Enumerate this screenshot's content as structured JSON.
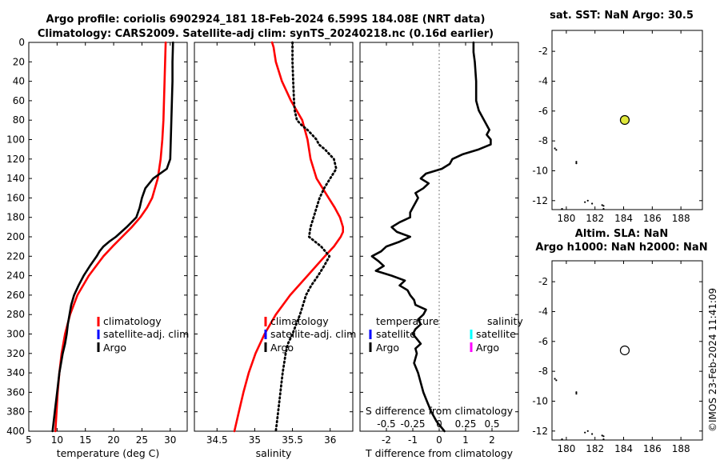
{
  "title": {
    "line1": "Argo profile: coriolis 6902924_181 18-Feb-2024 6.599S 184.08E (NRT data)",
    "line2": "Climatology: CARS2009. Satellite-adj clim: synTS_20240218.nc (0.16d earlier)"
  },
  "colors": {
    "climatology": "#ff0000",
    "satellite_adj_clim": "#0000ff",
    "argo": "#000000",
    "sal_satellite": "#00ffff",
    "sal_argo": "#ff00ff",
    "map_marker": "#dfe73a",
    "axis": "#000000"
  },
  "depth_ticks": [
    "0",
    "20",
    "40",
    "60",
    "80",
    "100",
    "120",
    "140",
    "160",
    "180",
    "200",
    "220",
    "240",
    "260",
    "280",
    "300",
    "320",
    "340",
    "360",
    "380",
    "400"
  ],
  "chart_data": [
    {
      "type": "line",
      "name": "temperature",
      "xlabel": "temperature (deg C)",
      "xlim": [
        5,
        33
      ],
      "ylim": [
        400,
        0
      ],
      "x_ticks": [
        "5",
        "10",
        "15",
        "20",
        "25",
        "30"
      ],
      "series": [
        {
          "name": "climatology",
          "color": "#ff0000",
          "style": "solid",
          "depth": [
            0,
            20,
            40,
            60,
            80,
            100,
            120,
            140,
            160,
            170,
            180,
            190,
            200,
            210,
            220,
            240,
            260,
            280,
            300,
            320,
            340,
            360,
            380,
            400
          ],
          "values": [
            29.2,
            29.1,
            29.0,
            28.9,
            28.8,
            28.6,
            28.3,
            27.8,
            26.8,
            25.9,
            24.7,
            23.2,
            21.5,
            19.8,
            18.2,
            15.6,
            13.6,
            12.3,
            11.4,
            10.8,
            10.4,
            10.1,
            9.9,
            9.7
          ]
        },
        {
          "name": "Argo",
          "color": "#000000",
          "style": "solid",
          "depth": [
            0,
            20,
            40,
            60,
            80,
            100,
            120,
            130,
            140,
            150,
            160,
            170,
            180,
            190,
            200,
            205,
            210,
            215,
            220,
            230,
            240,
            250,
            260,
            270,
            280,
            290,
            300,
            310,
            320,
            340,
            360,
            380,
            400
          ],
          "values": [
            30.5,
            30.4,
            30.4,
            30.3,
            30.2,
            30.1,
            30.0,
            29.4,
            27.0,
            25.6,
            25.0,
            24.6,
            24.0,
            22.3,
            20.4,
            19.2,
            18.2,
            17.5,
            17.0,
            15.8,
            14.7,
            13.8,
            13.0,
            12.5,
            12.2,
            11.9,
            11.7,
            11.4,
            11.0,
            10.4,
            10.0,
            9.6,
            9.2
          ]
        }
      ],
      "legend": [
        {
          "label": "climatology",
          "color": "#ff0000"
        },
        {
          "label": "satellite-adj. clim",
          "color": "#0000ff"
        },
        {
          "label": "Argo",
          "color": "#000000"
        }
      ]
    },
    {
      "type": "line",
      "name": "salinity",
      "xlabel": "salinity",
      "xlim": [
        34.2,
        36.3
      ],
      "ylim": [
        400,
        0
      ],
      "x_ticks": [
        "34.5",
        "35",
        "35.5",
        "36"
      ],
      "series": [
        {
          "name": "climatology",
          "color": "#ff0000",
          "style": "solid",
          "depth": [
            0,
            5,
            10,
            20,
            40,
            60,
            80,
            100,
            120,
            140,
            160,
            170,
            180,
            190,
            195,
            200,
            210,
            220,
            240,
            260,
            280,
            300,
            320,
            340,
            360,
            380,
            400
          ],
          "values": [
            35.23,
            35.25,
            35.26,
            35.28,
            35.36,
            35.48,
            35.63,
            35.7,
            35.74,
            35.82,
            35.98,
            36.06,
            36.13,
            36.17,
            36.17,
            36.14,
            36.05,
            35.93,
            35.7,
            35.47,
            35.28,
            35.13,
            35.01,
            34.92,
            34.85,
            34.79,
            34.73
          ]
        },
        {
          "name": "Argo",
          "color": "#000000",
          "style": "dotted",
          "depth": [
            0,
            20,
            40,
            60,
            70,
            80,
            85,
            90,
            95,
            100,
            105,
            110,
            120,
            130,
            140,
            150,
            160,
            170,
            180,
            190,
            200,
            210,
            220,
            230,
            240,
            250,
            260,
            270,
            280,
            290,
            300,
            310,
            320,
            340,
            360,
            380,
            400
          ],
          "values": [
            35.5,
            35.5,
            35.51,
            35.52,
            35.53,
            35.56,
            35.62,
            35.7,
            35.76,
            35.82,
            35.85,
            35.93,
            36.05,
            36.08,
            36.0,
            35.92,
            35.86,
            35.82,
            35.78,
            35.74,
            35.72,
            35.88,
            35.99,
            35.92,
            35.84,
            35.75,
            35.68,
            35.64,
            35.6,
            35.55,
            35.5,
            35.44,
            35.41,
            35.37,
            35.34,
            35.31,
            35.28
          ]
        }
      ],
      "legend": [
        {
          "label": "climatology",
          "color": "#ff0000"
        },
        {
          "label": "satellite-adj. clim",
          "color": "#0000ff"
        },
        {
          "label": "Argo",
          "color": "#000000"
        }
      ]
    },
    {
      "type": "line",
      "name": "difference_from_climatology",
      "xlabel": "T difference from climatology",
      "top_xlabel": "S difference from climatology",
      "xlim": [
        -3,
        3
      ],
      "ylim": [
        400,
        0
      ],
      "x_ticks": [
        "-2",
        "-1",
        "0",
        "1",
        "2"
      ],
      "top_ticks": [
        "-0.5",
        "-0.25",
        "0",
        "0.25",
        "0.5"
      ],
      "series": [
        {
          "name": "T difference (Argo - climatology)",
          "color": "#000000",
          "style": "solid",
          "depth": [
            0,
            10,
            20,
            40,
            60,
            70,
            80,
            90,
            95,
            100,
            105,
            110,
            115,
            120,
            125,
            130,
            135,
            140,
            145,
            150,
            155,
            160,
            165,
            170,
            175,
            180,
            185,
            190,
            195,
            200,
            205,
            210,
            215,
            220,
            225,
            230,
            235,
            240,
            245,
            250,
            255,
            260,
            265,
            270,
            275,
            280,
            285,
            290,
            295,
            300,
            305,
            310,
            315,
            320,
            330,
            340,
            350,
            360,
            370,
            380,
            390,
            400
          ],
          "values": [
            1.3,
            1.3,
            1.35,
            1.4,
            1.4,
            1.5,
            1.7,
            1.9,
            1.8,
            1.95,
            1.95,
            1.5,
            0.9,
            0.5,
            0.4,
            0.1,
            -0.5,
            -0.7,
            -0.4,
            -0.6,
            -0.9,
            -0.8,
            -0.9,
            -1.0,
            -1.1,
            -1.1,
            -1.5,
            -1.8,
            -1.6,
            -1.1,
            -1.5,
            -2.0,
            -2.2,
            -2.55,
            -2.3,
            -2.1,
            -2.4,
            -1.8,
            -1.3,
            -1.5,
            -1.2,
            -1.1,
            -0.95,
            -0.9,
            -0.5,
            -0.6,
            -0.8,
            -0.7,
            -0.9,
            -1.0,
            -0.85,
            -0.7,
            -0.9,
            -0.85,
            -0.95,
            -0.8,
            -0.7,
            -0.6,
            -0.45,
            -0.3,
            -0.1,
            0.2
          ]
        }
      ],
      "legend": [
        {
          "label": "temperature",
          "color": null
        },
        {
          "label": "satellite",
          "color": "#0000ff"
        },
        {
          "label": "Argo",
          "color": "#000000"
        },
        {
          "label": "salinity",
          "color": null
        },
        {
          "label": "satellite",
          "color": "#00ffff"
        },
        {
          "label": "Argo",
          "color": "#ff00ff"
        }
      ]
    },
    {
      "type": "scatter",
      "name": "sst_map",
      "title": "sat. SST: NaN Argo: 30.5",
      "xlim": [
        179,
        189.5
      ],
      "ylim": [
        -12.6,
        -0.6
      ],
      "x_ticks": [
        "180",
        "182",
        "184",
        "186",
        "188"
      ],
      "y_ticks": [
        "-2",
        "-4",
        "-6",
        "-8",
        "-10",
        "-12"
      ],
      "marker": {
        "lon": 184.08,
        "lat": -6.599,
        "fill": "#dfe73a"
      },
      "coast_points": [
        [
          179.2,
          -8.5
        ],
        [
          179.3,
          -8.6
        ],
        [
          180.7,
          -9.4
        ],
        [
          180.7,
          -9.5
        ],
        [
          181.3,
          -12.1
        ],
        [
          181.5,
          -12.0
        ],
        [
          181.8,
          -12.2
        ],
        [
          182.5,
          -12.3
        ],
        [
          182.6,
          -12.35
        ],
        [
          182.6,
          -12.55
        ],
        [
          179.7,
          -12.55
        ]
      ]
    },
    {
      "type": "scatter",
      "name": "sla_map",
      "title_line1": "Altim. SLA: NaN",
      "title_line2": "Argo h1000: NaN h2000: NaN",
      "xlim": [
        179,
        189.5
      ],
      "ylim": [
        -12.6,
        -0.6
      ],
      "x_ticks": [
        "180",
        "182",
        "184",
        "186",
        "188"
      ],
      "y_ticks": [
        "-2",
        "-4",
        "-6",
        "-8",
        "-10",
        "-12"
      ],
      "marker": {
        "lon": 184.08,
        "lat": -6.599,
        "fill": "#ffffff"
      },
      "coast_points": [
        [
          179.2,
          -8.5
        ],
        [
          179.3,
          -8.6
        ],
        [
          180.7,
          -9.4
        ],
        [
          180.7,
          -9.5
        ],
        [
          181.3,
          -12.1
        ],
        [
          181.5,
          -12.0
        ],
        [
          181.8,
          -12.2
        ],
        [
          182.5,
          -12.3
        ],
        [
          182.6,
          -12.35
        ],
        [
          182.6,
          -12.55
        ],
        [
          179.7,
          -12.55
        ]
      ]
    }
  ],
  "credit": "©IMOS 23-Feb-2024 11:41:09"
}
